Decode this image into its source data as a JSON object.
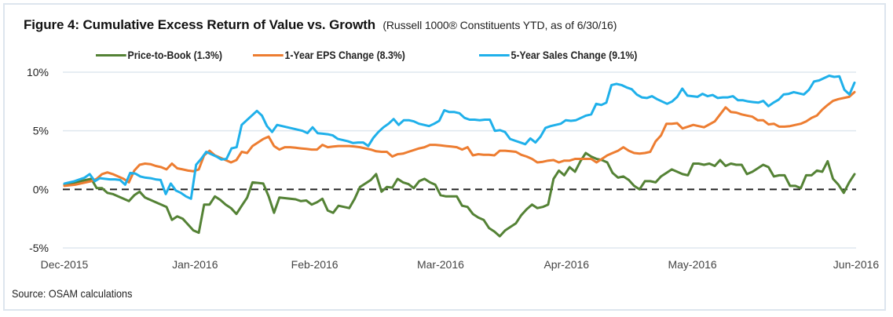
{
  "chart_data": {
    "type": "line",
    "title": "Figure 4: Cumulative Excess Return of Value vs. Growth",
    "subtitle": "(Russell 1000® Constituents YTD, as of 6/30/16)",
    "xlabel": "",
    "ylabel": "",
    "ylim": [
      -5,
      10
    ],
    "yticks": [
      10,
      5,
      0,
      -5
    ],
    "ytick_labels": [
      "10%",
      "5%",
      "0%",
      "-5%"
    ],
    "x_ticks": [
      "Dec-2015",
      "Jan-2016",
      "Feb-2016",
      "Mar-2016",
      "Apr-2016",
      "May-2016",
      "Jun-2016"
    ],
    "x_range_trading_days": [
      0,
      126
    ],
    "x_tick_positions": [
      0,
      21,
      40,
      60,
      80,
      100,
      126
    ],
    "grid": "horizontal",
    "zero_line": "dashed",
    "legend_position": "top-center",
    "source": "Source: OSAM calculations",
    "series": [
      {
        "name": "Price-to-Book (1.3%)",
        "color": "#548235",
        "values": [
          0.4,
          0.5,
          0.6,
          0.7,
          0.8,
          0.9,
          0.1,
          0.1,
          -0.3,
          -0.4,
          -0.6,
          -0.8,
          -1.0,
          -0.5,
          -0.2,
          -0.7,
          -0.9,
          -1.1,
          -1.3,
          -1.5,
          -2.6,
          -2.3,
          -2.5,
          -3.0,
          -3.5,
          -3.7,
          -1.3,
          -1.3,
          -0.6,
          -0.9,
          -1.3,
          -1.6,
          -2.1,
          -1.4,
          -0.7,
          0.6,
          0.55,
          0.5,
          -0.6,
          -2.0,
          -0.7,
          -0.75,
          -0.8,
          -0.85,
          -1.0,
          -0.95,
          -1.3,
          -1.1,
          -0.8,
          -1.8,
          -2.0,
          -1.4,
          -1.5,
          -1.6,
          -0.8,
          0.2,
          0.5,
          0.8,
          1.3,
          -0.2,
          0.2,
          0.15,
          0.9,
          0.6,
          0.45,
          0.1,
          0.7,
          0.9,
          0.6,
          0.4,
          -0.5,
          -0.6,
          -0.6,
          -0.6,
          -1.4,
          -1.5,
          -2.1,
          -2.4,
          -2.6,
          -3.3,
          -3.6,
          -4.0,
          -3.5,
          -3.2,
          -2.9,
          -2.2,
          -1.7,
          -1.3,
          -1.6,
          -1.5,
          -1.3,
          0.9,
          1.6,
          1.2,
          1.9,
          1.5,
          2.4,
          3.1,
          2.8,
          2.6,
          2.5,
          2.3,
          1.4,
          1.0,
          1.1,
          0.8,
          0.3,
          0.0,
          0.7,
          0.7,
          0.6,
          1.1,
          1.4,
          1.7,
          1.5,
          1.3,
          1.2,
          2.2,
          2.2,
          2.1,
          2.2,
          2.0,
          2.5,
          2.0,
          2.2,
          2.1,
          2.1
        ],
        "tail_values": [
          1.3,
          1.5,
          1.8,
          2.1,
          1.9,
          1.1,
          1.2,
          1.2,
          0.3,
          0.3,
          0.1,
          1.2,
          1.2,
          1.6,
          1.5,
          2.4,
          0.9,
          0.4,
          -0.3,
          0.6,
          1.3
        ]
      },
      {
        "name": "1-Year EPS Change (8.3%)",
        "color": "#ed7d31",
        "values": [
          0.3,
          0.35,
          0.4,
          0.5,
          0.6,
          0.7,
          0.9,
          1.3,
          1.45,
          1.3,
          1.1,
          0.9,
          0.6,
          1.6,
          2.1,
          2.2,
          2.15,
          2.0,
          1.9,
          1.7,
          2.2,
          1.8,
          1.7,
          1.6,
          1.55,
          1.7,
          2.9,
          3.3,
          2.9,
          2.7,
          2.5,
          2.3,
          2.5,
          3.2,
          3.1,
          3.7,
          4.0,
          4.3,
          4.5,
          3.7,
          3.4,
          3.6,
          3.6,
          3.55,
          3.5,
          3.45,
          3.4,
          3.4,
          3.8,
          3.6,
          3.65,
          3.7,
          3.7,
          3.7,
          3.65,
          3.6,
          3.5,
          3.4,
          3.25,
          3.2,
          3.2,
          2.8,
          3.0,
          3.05,
          3.2,
          3.35,
          3.5,
          3.6,
          3.8,
          3.8,
          3.75,
          3.7,
          3.65,
          3.6,
          3.4,
          3.6,
          2.9,
          3.0,
          2.95,
          2.95,
          2.9,
          3.3,
          3.3,
          3.25,
          3.2,
          2.95,
          2.8,
          2.6,
          2.3,
          2.35,
          2.45,
          2.5,
          2.3,
          2.45,
          2.45,
          2.6,
          2.6,
          2.6,
          2.6,
          2.3,
          2.6,
          2.9,
          3.1,
          3.3,
          3.6,
          3.3,
          3.1,
          3.05,
          3.1,
          3.2,
          4.1,
          4.6,
          5.6,
          5.6,
          5.65,
          5.2,
          5.35,
          5.5,
          5.4,
          5.3,
          5.55,
          5.8,
          6.4,
          7.0,
          6.6,
          6.55,
          6.4
        ],
        "tail_values": [
          6.3,
          6.2,
          5.9,
          5.9,
          5.55,
          5.6,
          5.35,
          5.35,
          5.4,
          5.5,
          5.6,
          5.8,
          6.1,
          6.3,
          6.8,
          7.2,
          7.55,
          7.7,
          7.8,
          7.9,
          8.3
        ]
      },
      {
        "name": "5-Year Sales Change (9.1%)",
        "color": "#1fb0ea",
        "values": [
          0.5,
          0.6,
          0.7,
          0.85,
          1.0,
          1.3,
          0.7,
          0.95,
          0.9,
          0.85,
          0.85,
          0.8,
          0.4,
          1.4,
          1.35,
          1.1,
          1.0,
          0.95,
          0.85,
          0.8,
          -0.4,
          0.5,
          -0.1,
          -0.3,
          -0.6,
          -0.8,
          2.1,
          2.6,
          3.2,
          3.0,
          2.8,
          2.55,
          2.6,
          3.5,
          3.6,
          5.5,
          5.9,
          6.3,
          6.7,
          6.3,
          5.4,
          4.9,
          5.5,
          5.4,
          5.3,
          5.2,
          5.1,
          5.0,
          4.8,
          5.3,
          4.8,
          4.75,
          4.7,
          4.6,
          4.3,
          4.2,
          4.1,
          3.95,
          4.0,
          4.0,
          3.7,
          4.4,
          4.9,
          5.3,
          5.6,
          6.0,
          5.5,
          5.9,
          5.9,
          5.8,
          5.6,
          5.5,
          5.4,
          5.6,
          5.85,
          6.75,
          6.6,
          6.6,
          6.5,
          6.1,
          5.95,
          5.95,
          5.9,
          5.95,
          5.95,
          5.0,
          5.05,
          4.9,
          4.3,
          4.15,
          4.0,
          3.85,
          4.35,
          4.0,
          4.5,
          5.25,
          5.4,
          5.5,
          5.6,
          5.9,
          5.85,
          5.9,
          6.1,
          6.3,
          6.4,
          7.3,
          7.2,
          7.4,
          8.9,
          9.0,
          8.9,
          8.7,
          8.55,
          8.1,
          7.85,
          7.8,
          7.95,
          7.7,
          7.5,
          7.3
        ],
        "tail_values": [
          7.5,
          7.9,
          8.6,
          8.0,
          7.95,
          7.9,
          8.15,
          7.95,
          8.05,
          7.8,
          7.85,
          7.85,
          7.95,
          7.6,
          7.6,
          7.5,
          7.45,
          7.4,
          7.55,
          7.1,
          7.4,
          7.65,
          8.1,
          8.15,
          8.3,
          8.2,
          8.1,
          8.5,
          9.2,
          9.3,
          9.5,
          9.7,
          9.6,
          9.65,
          8.5,
          8.1,
          9.1
        ]
      }
    ]
  },
  "footer": {
    "source": "Source: OSAM calculations"
  }
}
